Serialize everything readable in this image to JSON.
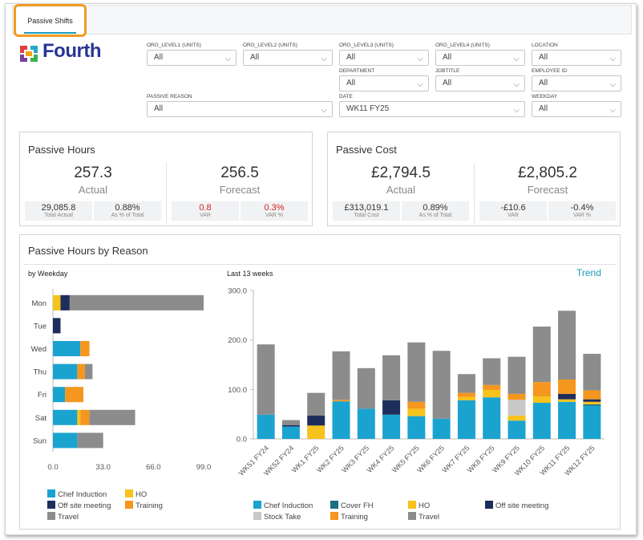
{
  "tab": {
    "label": "Passive Shifts"
  },
  "logo": {
    "text": "Fourth"
  },
  "filters": [
    {
      "label": "ORG_LEVEL1 (UNITS)",
      "value": "All"
    },
    {
      "label": "ORG_LEVEL2 (UNITS)",
      "value": "All"
    },
    {
      "label": "ORG_LEVEL3 (UNITS)",
      "value": "All"
    },
    {
      "label": "ORG_LEVEL4 (UNITS)",
      "value": "All"
    },
    {
      "label": "LOCATION",
      "value": "All"
    },
    {
      "label": "DEPARTMENT",
      "value": "All"
    },
    {
      "label": "JOBTITLE",
      "value": "All"
    },
    {
      "label": "EMPLOYEE ID",
      "value": "All"
    },
    {
      "label": "PASSIVE REASON",
      "value": "All"
    },
    {
      "label": "DATE",
      "value": "WK11 FY25"
    },
    {
      "label": "WEEKDAY",
      "value": "All"
    }
  ],
  "passive_hours": {
    "title": "Passive Hours",
    "actual": {
      "value": "257.3",
      "label": "Actual",
      "sub1": {
        "v": "29,085.8",
        "c": "Total Actual"
      },
      "sub2": {
        "v": "0.88%",
        "c": "As % of Total"
      }
    },
    "forecast": {
      "value": "256.5",
      "label": "Forecast",
      "sub1": {
        "v": "0.8",
        "c": "VAR"
      },
      "sub2": {
        "v": "0.3%",
        "c": "VAR %"
      }
    }
  },
  "passive_cost": {
    "title": "Passive Cost",
    "actual": {
      "value": "£2,794.5",
      "label": "Actual",
      "sub1": {
        "v": "£313,019.1",
        "c": "Total Cost"
      },
      "sub2": {
        "v": "0.89%",
        "c": "As % of Total"
      }
    },
    "forecast": {
      "value": "£2,805.2",
      "label": "Forecast",
      "sub1": {
        "v": "-£10.6",
        "c": "VAR"
      },
      "sub2": {
        "v": "-0.4%",
        "c": "VAR %"
      }
    }
  },
  "reason_panel": {
    "title": "Passive Hours by Reason",
    "left_subtitle": "by Weekday",
    "right_subtitle": "Last 13 weeks",
    "trend_link": "Trend"
  },
  "colors": {
    "Chef Induction": "#1ba3d0",
    "Cover FH": "#1a6f80",
    "HO": "#f6c21b",
    "Off site meeting": "#1d2d5c",
    "Stock Take": "#c8c8c8",
    "Training": "#f5961f",
    "Travel": "#8c8c8c",
    "accent": "#1a9bb8",
    "red": "#d21f26"
  },
  "chart_data": [
    {
      "type": "bar",
      "orientation": "horizontal",
      "stacked": true,
      "categories": [
        "Mon",
        "Tue",
        "Wed",
        "Thu",
        "Fri",
        "Sat",
        "Sun"
      ],
      "xlim": [
        0,
        99
      ],
      "xticks": [
        "0.0",
        "33.0",
        "66.0",
        "99.0"
      ],
      "series": [
        {
          "name": "Chef Induction",
          "values": [
            0,
            0,
            18,
            16,
            8,
            16,
            16
          ]
        },
        {
          "name": "HO",
          "values": [
            5,
            0,
            0,
            0,
            0,
            2,
            0
          ]
        },
        {
          "name": "Off site meeting",
          "values": [
            6,
            5,
            0,
            0,
            0,
            0,
            0
          ]
        },
        {
          "name": "Training",
          "values": [
            0,
            0,
            6,
            5,
            12,
            6,
            0
          ]
        },
        {
          "name": "Travel",
          "values": [
            88,
            0,
            0,
            5,
            0,
            30,
            17
          ]
        }
      ],
      "legend": [
        "Chef Induction",
        "HO",
        "Off site meeting",
        "Training",
        "Travel"
      ]
    },
    {
      "type": "bar",
      "stacked": true,
      "categories": [
        "WK51 FY24",
        "WK52 FY24",
        "WK1 FY25",
        "WK2 FY25",
        "WK3 FY25",
        "WK4 FY25",
        "WK5 FY25",
        "WK6 FY25",
        "WK7 FY25",
        "WK8 FY25",
        "WK9 FY25",
        "WK10 FY25",
        "WK11 FY25",
        "WK12 FY25"
      ],
      "ylim": [
        0,
        300
      ],
      "yticks": [
        "0.0",
        "100.0",
        "200.0",
        "300.0"
      ],
      "series": [
        {
          "name": "Chef Induction",
          "values": [
            49,
            25,
            0,
            76,
            61,
            49,
            46,
            41,
            78,
            84,
            37,
            73,
            75,
            67
          ]
        },
        {
          "name": "Cover FH",
          "values": [
            0,
            0,
            0,
            0,
            0,
            0,
            0,
            0,
            0,
            0,
            0,
            0,
            0,
            3
          ]
        },
        {
          "name": "HO",
          "values": [
            0,
            0,
            27,
            0,
            0,
            0,
            15,
            0,
            7,
            15,
            10,
            13,
            5,
            5
          ]
        },
        {
          "name": "Off site meeting",
          "values": [
            0,
            3,
            20,
            0,
            0,
            29,
            0,
            0,
            0,
            0,
            0,
            0,
            11,
            5
          ]
        },
        {
          "name": "Stock Take",
          "values": [
            0,
            0,
            0,
            0,
            0,
            0,
            0,
            0,
            0,
            0,
            32,
            0,
            0,
            0
          ]
        },
        {
          "name": "Training",
          "values": [
            0,
            0,
            0,
            3,
            0,
            0,
            14,
            0,
            8,
            10,
            12,
            29,
            29,
            18
          ]
        },
        {
          "name": "Travel",
          "values": [
            142,
            10,
            46,
            98,
            82,
            91,
            120,
            137,
            38,
            54,
            75,
            112,
            139,
            74
          ]
        }
      ],
      "legend": [
        "Chef Induction",
        "Cover FH",
        "HO",
        "Off site meeting",
        "Stock Take",
        "Training",
        "Travel"
      ]
    }
  ]
}
